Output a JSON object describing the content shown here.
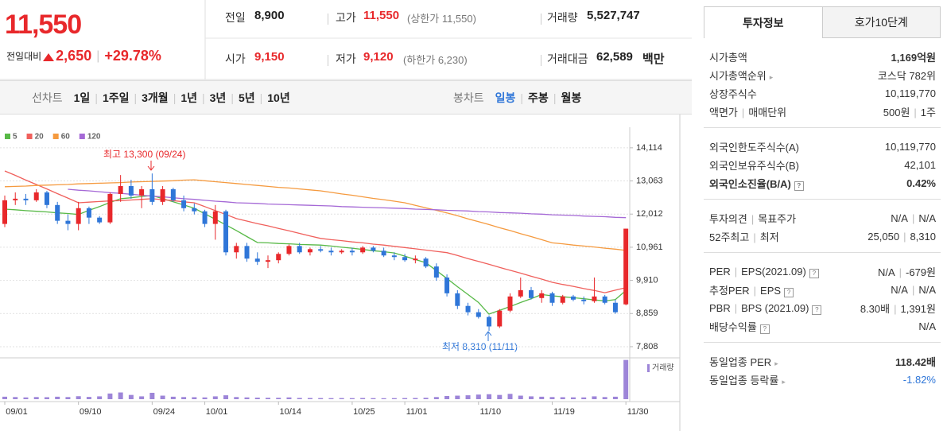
{
  "header": {
    "price": "11,550",
    "change_label": "전일대비",
    "change": "2,650",
    "change_rate": "+29.78%",
    "stats": [
      {
        "label": "전일",
        "value": "8,900"
      },
      {
        "label": "고가",
        "value": "11,550",
        "note": "(상한가 11,550)"
      },
      {
        "label": "거래량",
        "value": "5,527,747"
      },
      {
        "label": "시가",
        "value": "9,150"
      },
      {
        "label": "저가",
        "value": "9,120",
        "note": "(하한가 6,230)"
      },
      {
        "label": "거래대금",
        "value": "62,589",
        "unit": "백만"
      }
    ]
  },
  "chart_tabs": {
    "line_label": "선차트",
    "line_periods": [
      "1일",
      "1주일",
      "3개월",
      "1년",
      "3년",
      "5년",
      "10년"
    ],
    "candle_label": "봉차트",
    "candle_periods": [
      "일봉",
      "주봉",
      "월봉"
    ],
    "active": "일봉"
  },
  "chart_data": {
    "type": "candlestick",
    "categories": [
      "09/01",
      null,
      null,
      null,
      null,
      null,
      null,
      "09/10",
      null,
      null,
      null,
      null,
      null,
      null,
      "09/24",
      null,
      null,
      null,
      null,
      "10/01",
      null,
      null,
      null,
      null,
      null,
      null,
      "10/14",
      null,
      null,
      null,
      null,
      null,
      null,
      "10/25",
      null,
      null,
      null,
      null,
      "11/01",
      null,
      null,
      null,
      null,
      null,
      null,
      "11/10",
      null,
      null,
      null,
      null,
      null,
      null,
      "11/19",
      null,
      null,
      null,
      null,
      null,
      null,
      "11/30"
    ],
    "open": [
      11700,
      12450,
      12500,
      12450,
      12700,
      12300,
      11800,
      11700,
      12200,
      11900,
      11750,
      12650,
      12900,
      12600,
      12800,
      12400,
      12800,
      12450,
      12200,
      12100,
      11700,
      12100,
      10800,
      11000,
      10600,
      10500,
      10550,
      10750,
      11000,
      10800,
      10900,
      10850,
      10800,
      10850,
      10800,
      10950,
      10850,
      10700,
      10650,
      10550,
      10600,
      10350,
      10000,
      9500,
      9100,
      8900,
      8750,
      8450,
      8950,
      9400,
      9600,
      9350,
      9500,
      9200,
      9400,
      9300,
      9250,
      9400,
      9200,
      9150
    ],
    "high": [
      12600,
      12700,
      12650,
      12800,
      12750,
      12400,
      12000,
      12400,
      12250,
      11950,
      12700,
      13250,
      13100,
      12900,
      13300,
      12900,
      12850,
      12600,
      12350,
      12150,
      12300,
      12150,
      11100,
      11100,
      10800,
      10700,
      10800,
      11050,
      11100,
      10950,
      11000,
      10950,
      10900,
      10950,
      11000,
      11000,
      10950,
      10800,
      10750,
      10700,
      10650,
      10450,
      10100,
      9600,
      9200,
      9000,
      8800,
      9000,
      9500,
      10000,
      9700,
      9600,
      9550,
      9450,
      9450,
      9400,
      10000,
      9450,
      9300,
      11550
    ],
    "low": [
      11600,
      12300,
      12300,
      12400,
      12200,
      11700,
      11500,
      11500,
      11700,
      11700,
      11700,
      12400,
      12500,
      12200,
      12300,
      12300,
      12400,
      12100,
      12000,
      11600,
      11200,
      10700,
      10600,
      10500,
      10400,
      10300,
      10450,
      10700,
      10750,
      10700,
      10800,
      10700,
      10750,
      10700,
      10750,
      10800,
      10650,
      10550,
      10500,
      10450,
      10300,
      9900,
      9400,
      9000,
      8800,
      8700,
      8310,
      8400,
      8900,
      9350,
      9300,
      9200,
      9100,
      9150,
      9250,
      9150,
      9200,
      9150,
      8850,
      9120
    ],
    "close": [
      12450,
      12500,
      12450,
      12700,
      12300,
      11800,
      11700,
      12200,
      11900,
      11750,
      12650,
      12900,
      12600,
      12800,
      12400,
      12800,
      12450,
      12200,
      12100,
      11700,
      12100,
      10800,
      11000,
      10600,
      10500,
      10550,
      10750,
      11000,
      10800,
      10900,
      10850,
      10800,
      10850,
      10800,
      10950,
      10850,
      10700,
      10650,
      10550,
      10600,
      10350,
      10000,
      9500,
      9100,
      8900,
      8750,
      8450,
      8950,
      9400,
      9600,
      9350,
      9500,
      9200,
      9400,
      9300,
      9250,
      9400,
      9200,
      8900,
      11550
    ],
    "up_color": "#e8282b",
    "down_color": "#2f76d8",
    "series": [
      {
        "name": "5",
        "color": "#58b947",
        "values": [
          12170,
          12150,
          12120,
          12100,
          12080,
          12050,
          12030,
          12000,
          12130,
          12250,
          12380,
          12500,
          12530,
          12570,
          12600,
          12500,
          12400,
          12300,
          12200,
          12020,
          11850,
          11670,
          11490,
          11300,
          11110,
          11100,
          11080,
          11070,
          11050,
          11040,
          11030,
          11000,
          10960,
          10930,
          10890,
          10850,
          10820,
          10780,
          10680,
          10570,
          10470,
          10220,
          9970,
          9710,
          9460,
          9210,
          8840,
          8960,
          9080,
          9210,
          9330,
          9460,
          9420,
          9390,
          9360,
          9330,
          9290,
          9260,
          9300,
          9590
        ]
      },
      {
        "name": "20",
        "color": "#f0605c",
        "values": [
          13380,
          13240,
          13090,
          12950,
          12810,
          12660,
          12520,
          12370,
          12390,
          12410,
          12430,
          12440,
          12460,
          12480,
          12500,
          12470,
          12440,
          12400,
          12370,
          12250,
          12120,
          12000,
          11870,
          11790,
          11710,
          11640,
          11560,
          11480,
          11400,
          11320,
          11240,
          11200,
          11170,
          11130,
          11100,
          11060,
          11030,
          10990,
          10950,
          10910,
          10870,
          10830,
          10790,
          10700,
          10600,
          10510,
          10420,
          10320,
          10230,
          10140,
          10040,
          9950,
          9850,
          9780,
          9720,
          9650,
          9590,
          9520,
          9600,
          9680
        ]
      },
      {
        "name": "60",
        "color": "#f59a3f",
        "values": [
          12880,
          12890,
          12900,
          12920,
          12930,
          12940,
          12950,
          12970,
          12980,
          12990,
          13000,
          13010,
          13030,
          13040,
          13050,
          13060,
          13070,
          13090,
          13100,
          13070,
          13040,
          13010,
          12980,
          12950,
          12920,
          12890,
          12860,
          12840,
          12810,
          12780,
          12750,
          12700,
          12650,
          12610,
          12560,
          12510,
          12470,
          12420,
          12370,
          12290,
          12210,
          12130,
          12050,
          11960,
          11860,
          11770,
          11680,
          11580,
          11490,
          11390,
          11300,
          11200,
          11100,
          11070,
          11030,
          11000,
          10970,
          10930,
          10900,
          10860
        ]
      },
      {
        "name": "120",
        "color": "#a569d6",
        "values": [
          null,
          null,
          null,
          null,
          null,
          null,
          12800,
          12770,
          12750,
          12720,
          12690,
          12670,
          12640,
          12610,
          12580,
          12560,
          12530,
          12500,
          12480,
          12450,
          12420,
          12400,
          12370,
          12360,
          12350,
          12330,
          12320,
          12310,
          12300,
          12290,
          12280,
          12270,
          12250,
          12240,
          12230,
          12220,
          12210,
          12200,
          12190,
          12170,
          12160,
          12150,
          12130,
          12120,
          12110,
          12090,
          12080,
          12060,
          12050,
          12040,
          12020,
          12010,
          11990,
          11980,
          11970,
          11950,
          11940,
          11930,
          11910,
          11900
        ]
      }
    ],
    "ylim": [
      7580,
      14640
    ],
    "yticks": [
      {
        "value": 14114,
        "label": "14,114"
      },
      {
        "value": 13063,
        "label": "13,063"
      },
      {
        "value": 12012,
        "label": "12,012"
      },
      {
        "value": 10961,
        "label": "10,961"
      },
      {
        "value": 9910,
        "label": "9,910"
      },
      {
        "value": 8859,
        "label": "8,859"
      },
      {
        "value": 7808,
        "label": "7,808"
      }
    ],
    "grid": true,
    "volume": {
      "name": "거래량",
      "color": "#9d85d8",
      "values": [
        350000,
        300000,
        250000,
        300000,
        280000,
        350000,
        300000,
        420000,
        320000,
        400000,
        800000,
        950000,
        600000,
        400000,
        900000,
        500000,
        350000,
        300000,
        280000,
        250000,
        400000,
        550000,
        300000,
        250000,
        220000,
        200000,
        200000,
        250000,
        180000,
        170000,
        160000,
        150000,
        160000,
        150000,
        170000,
        150000,
        140000,
        150000,
        160000,
        170000,
        200000,
        300000,
        450000,
        500000,
        550000,
        650000,
        700000,
        600000,
        750000,
        500000,
        400000,
        350000,
        300000,
        280000,
        260000,
        250000,
        400000,
        300000,
        350000,
        5527747
      ],
      "ylim": [
        0,
        5600000
      ]
    },
    "annotations": [
      {
        "text": "최고 13,300 (09/24)"
      },
      {
        "text": "최저 8,310 (11/11)"
      }
    ]
  },
  "side_panel": {
    "tabs": [
      "투자정보",
      "호가10단계"
    ],
    "groups": [
      [
        {
          "label": [
            "시가총액"
          ],
          "value": [
            "1,169억원"
          ]
        },
        {
          "label": [
            "시가총액순위"
          ],
          "value": [
            "코스닥 782위"
          ]
        },
        {
          "label": [
            "상장주식수"
          ],
          "value": [
            "10,119,770"
          ]
        },
        {
          "label": [
            "액면가",
            "매매단위"
          ],
          "value": [
            "500원",
            "1주"
          ]
        }
      ],
      [
        {
          "label": [
            "외국인한도주식수(A)"
          ],
          "value": [
            "10,119,770"
          ]
        },
        {
          "label": [
            "외국인보유주식수(B)"
          ],
          "value": [
            "42,101"
          ]
        },
        {
          "label": [
            "외국인소진율(B/A)"
          ],
          "value": [
            "0.42%"
          ]
        }
      ],
      [
        {
          "label": [
            "투자의견",
            "목표주가"
          ],
          "value": [
            "N/A",
            "N/A"
          ]
        },
        {
          "label": [
            "52주최고",
            "최저"
          ],
          "value": [
            "25,050",
            "8,310"
          ]
        }
      ],
      [
        {
          "label": [
            "PER",
            "EPS(2021.09)"
          ],
          "value": [
            "N/A",
            "-679원"
          ]
        },
        {
          "label": [
            "추정PER",
            "EPS"
          ],
          "value": [
            "N/A",
            "N/A"
          ]
        },
        {
          "label": [
            "PBR",
            "BPS (2021.09)"
          ],
          "value": [
            "8.30배",
            "1,391원"
          ]
        },
        {
          "label": [
            "배당수익률"
          ],
          "value": [
            "N/A"
          ]
        }
      ],
      [
        {
          "label": [
            "동일업종 PER"
          ],
          "value": [
            "118.42배"
          ]
        },
        {
          "label": [
            "동일업종 등락률"
          ],
          "value": [
            "-1.82%"
          ]
        }
      ]
    ]
  }
}
